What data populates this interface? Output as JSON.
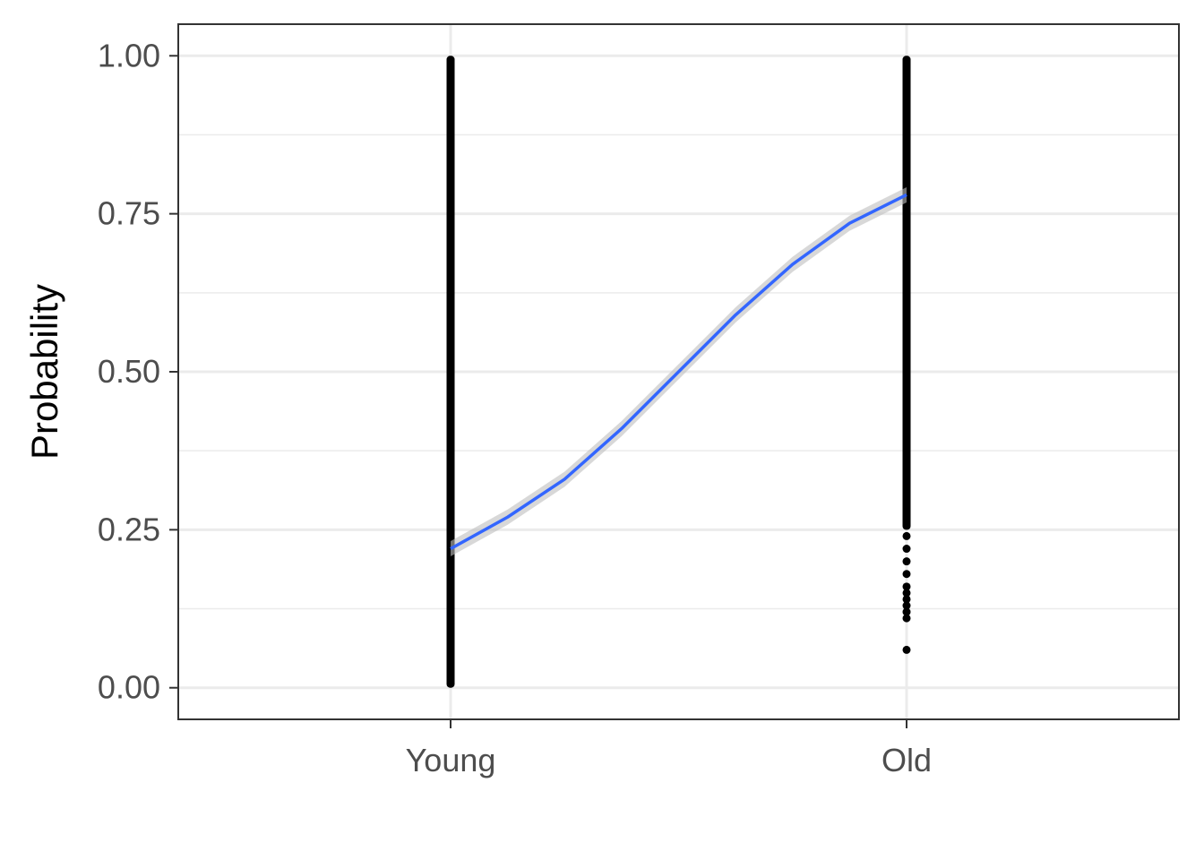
{
  "chart_data": {
    "type": "scatter",
    "title": "",
    "xlabel": "",
    "ylabel": "Probability",
    "categories": [
      "Young",
      "Old"
    ],
    "ylim": [
      -0.05,
      1.05
    ],
    "y_ticks": [
      0.0,
      0.25,
      0.5,
      0.75,
      1.0
    ],
    "y_tick_labels": [
      "0.00",
      "0.25",
      "0.50",
      "0.75",
      "1.00"
    ],
    "grid": true,
    "points": {
      "Young": {
        "min": 0.0,
        "max": 1.0
      },
      "Old": {
        "min": 0.06,
        "max": 1.0,
        "sparse_low_values": [
          0.06,
          0.11,
          0.12,
          0.13,
          0.14,
          0.15,
          0.16,
          0.18,
          0.2,
          0.22,
          0.24
        ]
      }
    },
    "smooth_line": {
      "x": [
        "Young",
        "Old"
      ],
      "x_positions": [
        0.0,
        0.125,
        0.25,
        0.375,
        0.5,
        0.625,
        0.75,
        0.875,
        1.0
      ],
      "y": [
        0.22,
        0.27,
        0.33,
        0.41,
        0.5,
        0.59,
        0.67,
        0.735,
        0.78
      ],
      "ci_halfwidth": 0.012
    },
    "colors": {
      "points": "#000000",
      "line": "#3366FF",
      "ribbon": "#BEBEBE",
      "grid": "#EBEBEB",
      "panel_border": "#333333"
    }
  }
}
